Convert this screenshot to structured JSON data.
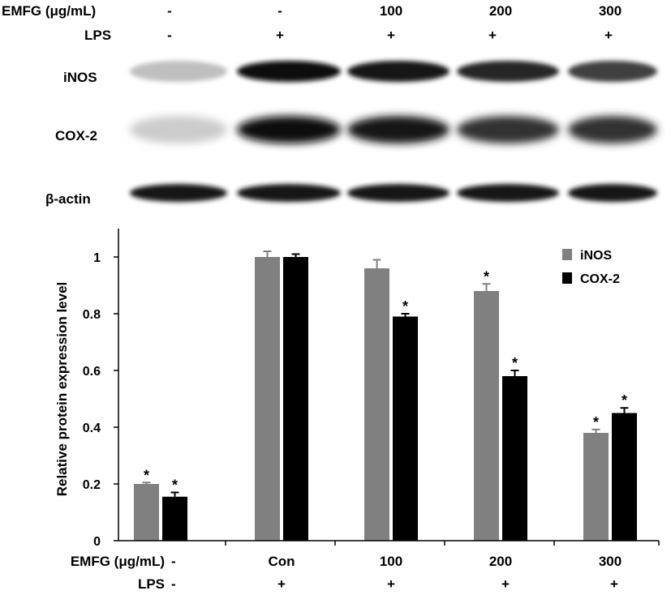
{
  "header": {
    "emfg_label": "EMFG (μg/mL)",
    "lps_label": "LPS",
    "lanes": [
      {
        "emfg": "-",
        "lps": "-"
      },
      {
        "emfg": "-",
        "lps": "+"
      },
      {
        "emfg": "100",
        "lps": "+"
      },
      {
        "emfg": "200",
        "lps": "+"
      },
      {
        "emfg": "300",
        "lps": "+"
      }
    ]
  },
  "blot": {
    "rows": [
      {
        "label": "iNOS",
        "intensities": [
          0.25,
          0.95,
          0.9,
          0.85,
          0.75
        ]
      },
      {
        "label": "COX-2",
        "intensities": [
          0.2,
          0.95,
          0.9,
          0.8,
          0.8
        ]
      },
      {
        "label": "β-actin",
        "intensities": [
          0.9,
          0.9,
          0.9,
          0.9,
          0.9
        ]
      }
    ]
  },
  "colors": {
    "inos": "#808080",
    "cox2": "#000000"
  },
  "chart_data": {
    "type": "bar",
    "ylabel": "Relative protein expression level",
    "ylim": [
      0,
      1
    ],
    "yticks": [
      "0",
      "0.2",
      "0.4",
      "0.6",
      "0.8",
      "1"
    ],
    "legend": "top-right",
    "categories": [
      "",
      "Con",
      "100",
      "200",
      "300"
    ],
    "x_row_labels": {
      "emfg_label": "EMFG (μg/mL)",
      "emfg": [
        "-",
        "Con",
        "100",
        "200",
        "300"
      ],
      "lps_label": "LPS",
      "lps": [
        "-",
        "+",
        "+",
        "+",
        "+"
      ]
    },
    "series": [
      {
        "name": "iNOS",
        "values": [
          0.2,
          1.0,
          0.96,
          0.88,
          0.38
        ],
        "errors": [
          0.005,
          0.02,
          0.03,
          0.025,
          0.012
        ],
        "significant": [
          true,
          false,
          false,
          true,
          true
        ]
      },
      {
        "name": "COX-2",
        "values": [
          0.155,
          1.0,
          0.79,
          0.58,
          0.45
        ],
        "errors": [
          0.015,
          0.01,
          0.01,
          0.02,
          0.018
        ],
        "significant": [
          true,
          false,
          true,
          true,
          true
        ]
      }
    ],
    "significance_marker": "*"
  }
}
